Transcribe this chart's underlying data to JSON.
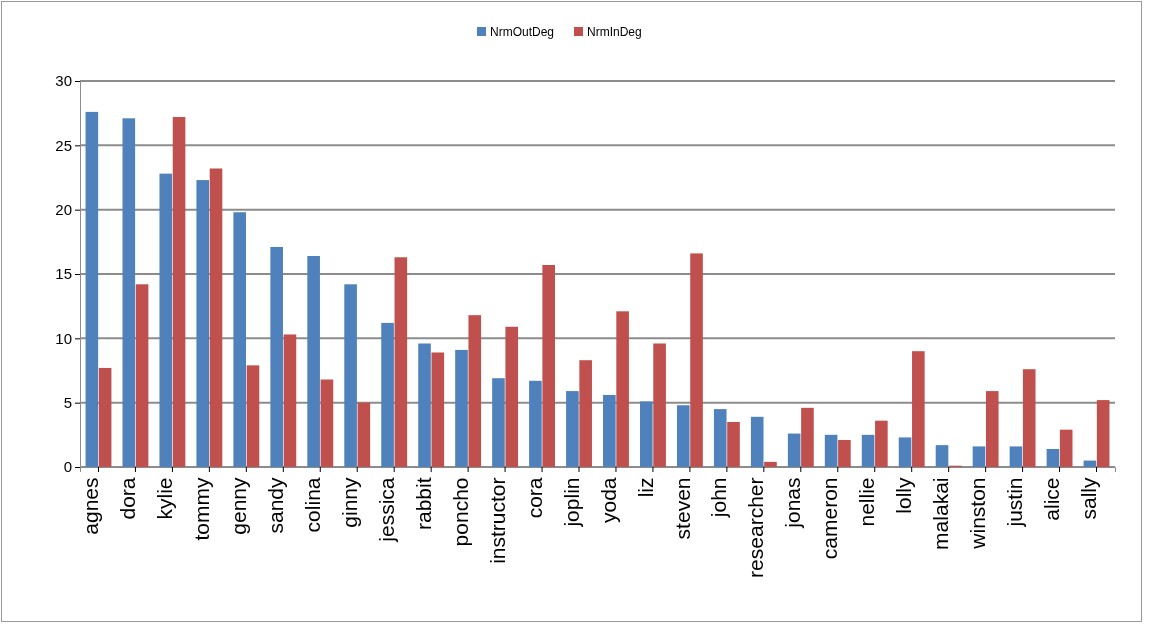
{
  "chart_data": {
    "type": "bar",
    "categories": [
      "agnes",
      "dora",
      "kylie",
      "tommy",
      "genny",
      "sandy",
      "colina",
      "ginny",
      "jessica",
      "rabbit",
      "poncho",
      "instructor",
      "cora",
      "joplin",
      "yoda",
      "liz",
      "steven",
      "john",
      "researcher",
      "jonas",
      "cameron",
      "nellie",
      "lolly",
      "malakai",
      "winston",
      "justin",
      "alice",
      "sally"
    ],
    "series": [
      {
        "name": "NrmOutDeg",
        "color": "#4f81bd",
        "values": [
          27.6,
          27.1,
          22.8,
          22.3,
          19.8,
          17.1,
          16.4,
          14.2,
          11.2,
          9.6,
          9.1,
          6.9,
          6.7,
          5.9,
          5.6,
          5.1,
          4.8,
          4.5,
          3.9,
          2.6,
          2.5,
          2.5,
          2.3,
          1.7,
          1.6,
          1.6,
          1.4,
          0.5
        ]
      },
      {
        "name": "NrmInDeg",
        "color": "#c0504d",
        "values": [
          7.7,
          14.2,
          27.2,
          23.2,
          7.9,
          10.3,
          6.8,
          5.0,
          16.3,
          8.9,
          11.8,
          10.9,
          15.7,
          8.3,
          12.1,
          9.6,
          16.6,
          3.5,
          0.4,
          4.6,
          2.1,
          3.6,
          9.0,
          0.1,
          5.9,
          7.6,
          2.9,
          5.2
        ]
      }
    ],
    "ylim": [
      0,
      30
    ],
    "yticks": [
      0,
      5,
      10,
      15,
      20,
      25,
      30
    ],
    "grid": "y",
    "legend": "top"
  }
}
